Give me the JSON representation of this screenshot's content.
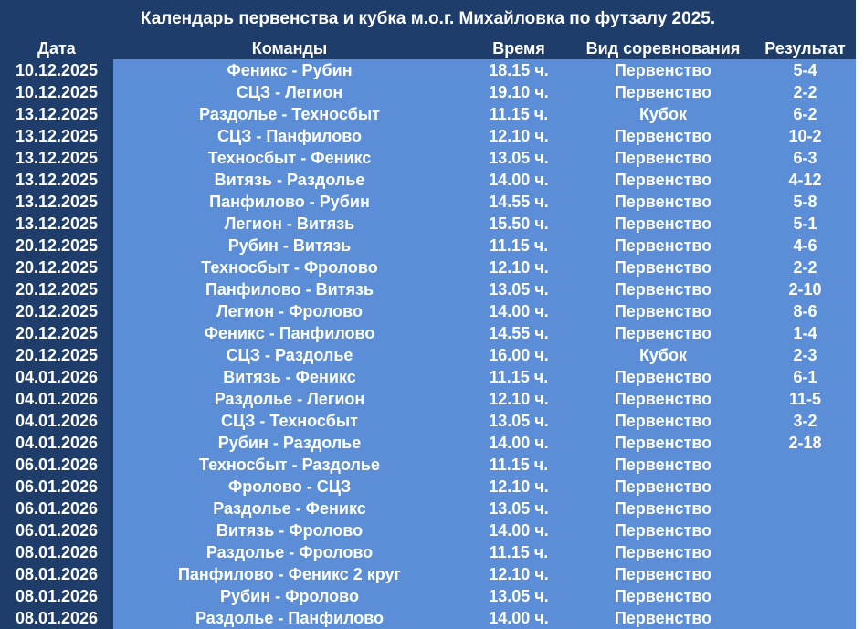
{
  "title": "Календарь первенства и кубка м.о.г. Михайловка по футзалу 2025.",
  "table": {
    "header": [
      "Дата",
      "Команды",
      "Время",
      "Вид соревнования",
      "Результат"
    ],
    "rows": [
      [
        "10.12.2025",
        "Феникс - Рубин",
        "18.15 ч.",
        "Первенство",
        "5-4"
      ],
      [
        "10.12.2025",
        "СЦЗ - Легион",
        "19.10 ч.",
        "Первенство",
        "2-2"
      ],
      [
        "13.12.2025",
        "Раздолье - Техносбыт",
        "11.15 ч.",
        "Кубок",
        "6-2"
      ],
      [
        "13.12.2025",
        "СЦЗ - Панфилово",
        "12.10 ч.",
        "Первенство",
        "10-2"
      ],
      [
        "13.12.2025",
        "Техносбыт - Феникс",
        "13.05 ч.",
        "Первенство",
        "6-3"
      ],
      [
        "13.12.2025",
        "Витязь - Раздолье",
        "14.00 ч.",
        "Первенство",
        "4-12"
      ],
      [
        "13.12.2025",
        "Панфилово - Рубин",
        "14.55 ч.",
        "Первенство",
        "5-8"
      ],
      [
        "13.12.2025",
        "Легион - Витязь",
        "15.50 ч.",
        "Первенство",
        "5-1"
      ],
      [
        "20.12.2025",
        "Рубин - Витязь",
        "11.15 ч.",
        "Первенство",
        "4-6"
      ],
      [
        "20.12.2025",
        "Техносбыт - Фролово",
        "12.10 ч.",
        "Первенство",
        "2-2"
      ],
      [
        "20.12.2025",
        "Панфилово - Витязь",
        "13.05 ч.",
        "Первенство",
        "2-10"
      ],
      [
        "20.12.2025",
        "Легион - Фролово",
        "14.00 ч.",
        "Первенство",
        "8-6"
      ],
      [
        "20.12.2025",
        "Феникс - Панфилово",
        "14.55 ч.",
        "Первенство",
        "1-4"
      ],
      [
        "20.12.2025",
        "СЦЗ - Раздолье",
        "16.00 ч.",
        "Кубок",
        "2-3"
      ],
      [
        "04.01.2026",
        "Витязь - Феникс",
        "11.15 ч.",
        "Первенство",
        "6-1"
      ],
      [
        "04.01.2026",
        "Раздолье - Легион",
        "12.10 ч.",
        "Первенство",
        "11-5"
      ],
      [
        "04.01.2026",
        "СЦЗ - Техносбыт",
        "13.05 ч.",
        "Первенство",
        "3-2"
      ],
      [
        "04.01.2026",
        "Рубин - Раздолье",
        "14.00 ч.",
        "Первенство",
        "2-18"
      ],
      [
        "06.01.2026",
        "Техносбыт - Раздолье",
        "11.15 ч.",
        "Первенство"
      ],
      [
        "06.01.2026",
        "Фролово - СЦЗ",
        "12.10 ч.",
        "Первенство"
      ],
      [
        "06.01.2026",
        "Раздолье - Феникс",
        "13.05 ч.",
        "Первенство"
      ],
      [
        "06.01.2026",
        "Витязь - Фролово",
        "14.00 ч.",
        "Первенство"
      ],
      [
        "08.01.2026",
        "Раздолье - Фролово",
        "11.15 ч.",
        "Первенство"
      ],
      [
        "08.01.2026",
        "Панфилово - Феникс 2 круг",
        "12.10 ч.",
        "Первенство"
      ],
      [
        "08.01.2026",
        "Рубин - Фролово",
        "13.05 ч.",
        "Первенство"
      ],
      [
        "08.01.2026",
        "Раздолье - Панфилово",
        "14.00 ч.",
        "Первенство"
      ]
    ]
  }
}
